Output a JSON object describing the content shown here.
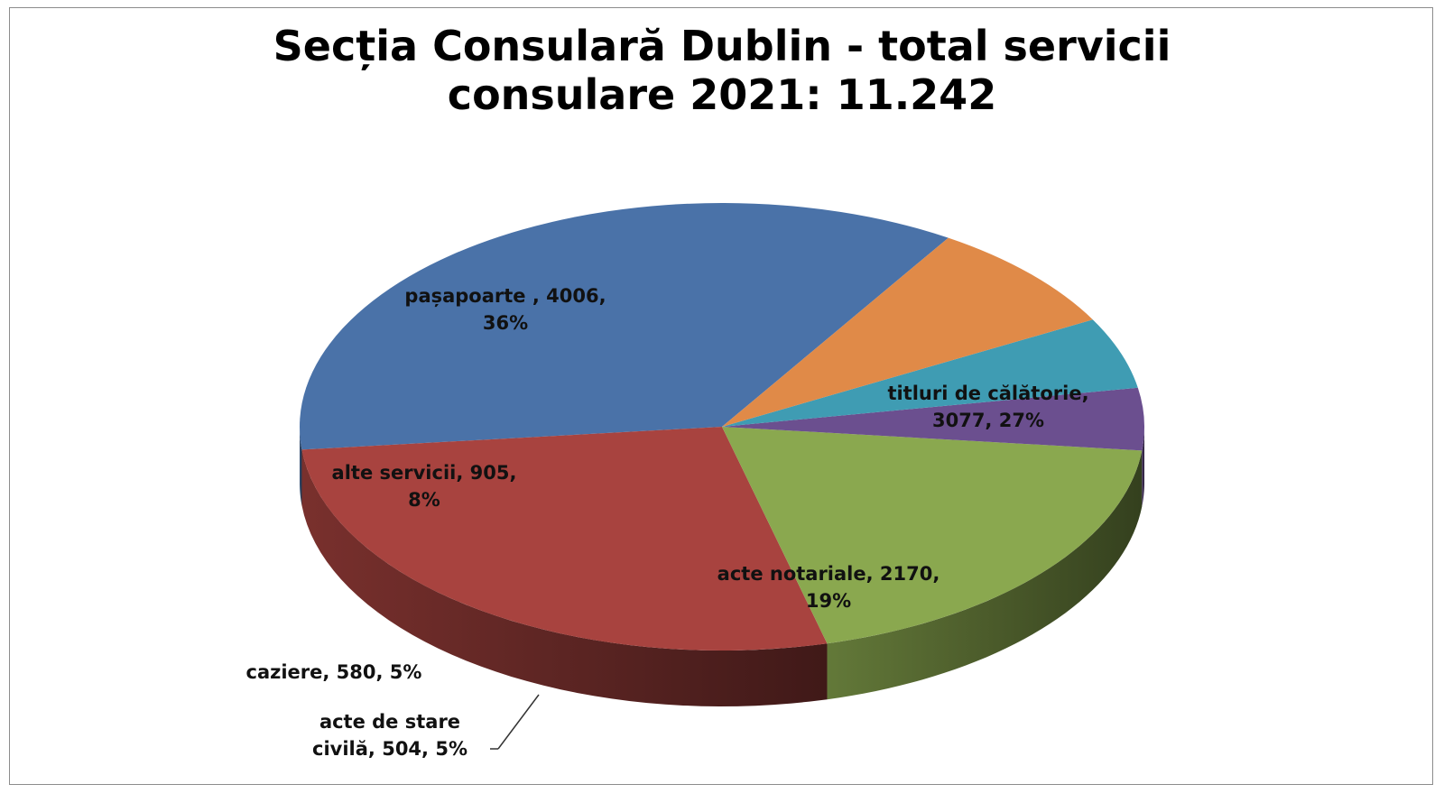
{
  "chart_data": {
    "type": "pie",
    "style": "3d",
    "title": "Secția Consulară Dublin - total servicii consulare 2021: 11.242",
    "title_lines": [
      "Secția Consulară Dublin - total servicii",
      "consulare 2021:  11.242"
    ],
    "total": 11242,
    "slices": [
      {
        "name": "pașapoarte",
        "value": 4006,
        "percent": "36%",
        "color": "#4a72a8",
        "label_lines": [
          "pașapoarte  , 4006,",
          "36%"
        ]
      },
      {
        "name": "titluri de călătorie",
        "value": 3077,
        "percent": "27%",
        "color": "#a8433f",
        "label_lines": [
          "titluri de călătorie,",
          "3077, 27%"
        ]
      },
      {
        "name": "acte notariale",
        "value": 2170,
        "percent": "19%",
        "color": "#8aa84f",
        "label_lines": [
          "acte notariale, 2170,",
          "19%"
        ]
      },
      {
        "name": "acte de stare civilă",
        "value": 504,
        "percent": "5%",
        "color": "#6b4f8f",
        "label_lines": [
          "acte de stare",
          "civilă, 504, 5%"
        ]
      },
      {
        "name": "caziere",
        "value": 580,
        "percent": "5%",
        "color": "#3f9cb3",
        "label_lines": [
          "caziere, 580, 5%"
        ]
      },
      {
        "name": "alte servicii",
        "value": 905,
        "percent": "8%",
        "color": "#e08a48",
        "label_lines": [
          "alte servicii,  905,",
          "8%"
        ]
      }
    ]
  }
}
